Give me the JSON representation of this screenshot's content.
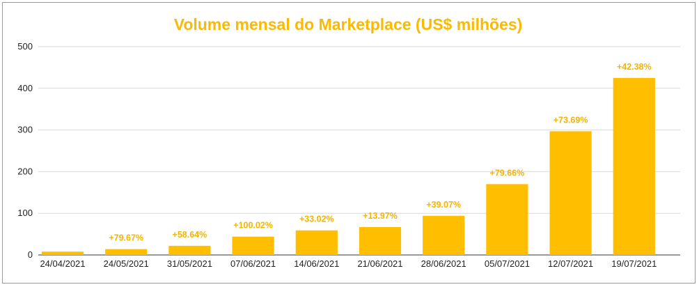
{
  "chart_data": {
    "type": "bar",
    "title": "Volume mensal do Marketplace (US$ milhões)",
    "xlabel": "",
    "ylabel": "",
    "ylim": [
      0,
      500
    ],
    "yticks": [
      "0",
      "100",
      "200",
      "300",
      "400",
      "500"
    ],
    "grid": true,
    "legend": "none",
    "categories": [
      "24/04/2021",
      "24/05/2021",
      "31/05/2021",
      "07/06/2021",
      "14/06/2021",
      "21/06/2021",
      "28/06/2021",
      "05/07/2021",
      "12/07/2021",
      "19/07/2021"
    ],
    "values": [
      8,
      14,
      22,
      44,
      59,
      67,
      94,
      170,
      297,
      425
    ],
    "data_labels": [
      "",
      "+79.67%",
      "+58.64%",
      "+100.02%",
      "+33.02%",
      "+13.97%",
      "+39.07%",
      "+79.66%",
      "+73.69%",
      "+42.38%"
    ],
    "colors": {
      "bar": "#FFBF00",
      "title": "#F9BA05",
      "label": "#F5B400",
      "grid": "#d9d9d9",
      "axis": "#333333"
    }
  }
}
